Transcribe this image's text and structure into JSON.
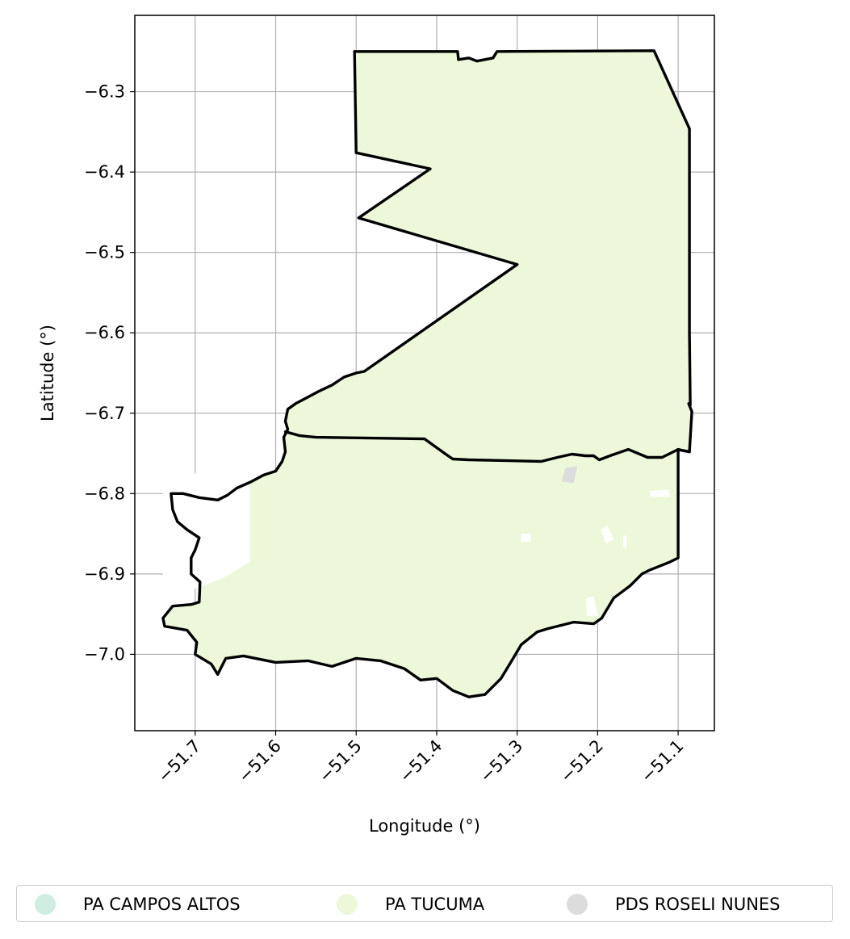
{
  "chart_data": {
    "type": "map",
    "xlabel": "Longitude (°)",
    "ylabel": "Latitude (°)",
    "xlim": [
      -51.775,
      -51.055
    ],
    "ylim": [
      -7.095,
      -6.205
    ],
    "x_ticks": [
      {
        "value": -51.7,
        "label": "−51.7"
      },
      {
        "value": -51.6,
        "label": "−51.6"
      },
      {
        "value": -51.5,
        "label": "−51.5"
      },
      {
        "value": -51.4,
        "label": "−51.4"
      },
      {
        "value": -51.3,
        "label": "−51.3"
      },
      {
        "value": -51.2,
        "label": "−51.2"
      },
      {
        "value": -51.1,
        "label": "−51.1"
      }
    ],
    "y_ticks": [
      {
        "value": -6.3,
        "label": "−6.3"
      },
      {
        "value": -6.4,
        "label": "−6.4"
      },
      {
        "value": -6.5,
        "label": "−6.5"
      },
      {
        "value": -6.6,
        "label": "−6.6"
      },
      {
        "value": -6.7,
        "label": "−6.7"
      },
      {
        "value": -6.8,
        "label": "−6.8"
      },
      {
        "value": -6.9,
        "label": "−6.9"
      },
      {
        "value": -7.0,
        "label": "−7.0"
      }
    ],
    "grid": true,
    "legend_position": "bottom",
    "regions": [
      {
        "name": "PA TUCUMA",
        "fill": "#edf8db",
        "outline": [
          [
            -51.502,
            -6.25
          ],
          [
            -51.374,
            -6.25
          ],
          [
            -51.373,
            -6.26
          ],
          [
            -51.36,
            -6.258
          ],
          [
            -51.35,
            -6.262
          ],
          [
            -51.33,
            -6.258
          ],
          [
            -51.325,
            -6.25
          ],
          [
            -51.13,
            -6.249
          ],
          [
            -51.086,
            -6.346
          ],
          [
            -51.086,
            -6.6
          ],
          [
            -51.085,
            -6.69
          ],
          [
            -51.086,
            -6.748
          ],
          [
            -51.097,
            -6.746
          ],
          [
            -51.1,
            -6.745
          ],
          [
            -51.1,
            -6.88
          ],
          [
            -51.11,
            -6.885
          ],
          [
            -51.135,
            -6.895
          ],
          [
            -51.145,
            -6.9
          ],
          [
            -51.16,
            -6.915
          ],
          [
            -51.18,
            -6.93
          ],
          [
            -51.195,
            -6.955
          ],
          [
            -51.205,
            -6.962
          ],
          [
            -51.23,
            -6.96
          ],
          [
            -51.262,
            -6.968
          ],
          [
            -51.275,
            -6.972
          ],
          [
            -51.295,
            -6.988
          ],
          [
            -51.305,
            -7.005
          ],
          [
            -51.32,
            -7.03
          ],
          [
            -51.34,
            -7.05
          ],
          [
            -51.36,
            -7.053
          ],
          [
            -51.38,
            -7.045
          ],
          [
            -51.4,
            -7.03
          ],
          [
            -51.42,
            -7.032
          ],
          [
            -51.44,
            -7.018
          ],
          [
            -51.47,
            -7.008
          ],
          [
            -51.5,
            -7.005
          ],
          [
            -51.53,
            -7.015
          ],
          [
            -51.56,
            -7.008
          ],
          [
            -51.6,
            -7.01
          ],
          [
            -51.64,
            -7.002
          ],
          [
            -51.662,
            -7.005
          ],
          [
            -51.672,
            -7.025
          ],
          [
            -51.68,
            -7.012
          ],
          [
            -51.7,
            -7.0
          ],
          [
            -51.698,
            -6.985
          ],
          [
            -51.71,
            -6.97
          ],
          [
            -51.738,
            -6.965
          ],
          [
            -51.74,
            -6.955
          ],
          [
            -51.728,
            -6.94
          ],
          [
            -51.705,
            -6.938
          ],
          [
            -51.695,
            -6.935
          ],
          [
            -51.694,
            -6.91
          ],
          [
            -51.705,
            -6.9
          ],
          [
            -51.705,
            -6.88
          ],
          [
            -51.7,
            -6.87
          ],
          [
            -51.695,
            -6.855
          ],
          [
            -51.71,
            -6.845
          ],
          [
            -51.722,
            -6.835
          ],
          [
            -51.728,
            -6.82
          ],
          [
            -51.73,
            -6.8
          ],
          [
            -51.715,
            -6.8
          ],
          [
            -51.695,
            -6.805
          ],
          [
            -51.672,
            -6.808
          ],
          [
            -51.66,
            -6.802
          ],
          [
            -51.648,
            -6.793
          ],
          [
            -51.63,
            -6.785
          ],
          [
            -51.615,
            -6.777
          ],
          [
            -51.6,
            -6.772
          ],
          [
            -51.592,
            -6.76
          ],
          [
            -51.588,
            -6.748
          ],
          [
            -51.59,
            -6.73
          ],
          [
            -51.585,
            -6.72
          ],
          [
            -51.588,
            -6.71
          ],
          [
            -51.585,
            -6.695
          ],
          [
            -51.575,
            -6.688
          ],
          [
            -51.56,
            -6.68
          ],
          [
            -51.545,
            -6.672
          ],
          [
            -51.53,
            -6.665
          ],
          [
            -51.515,
            -6.655
          ],
          [
            -51.5,
            -6.65
          ],
          [
            -51.49,
            -6.648
          ],
          [
            -51.3,
            -6.515
          ],
          [
            -51.497,
            -6.457
          ],
          [
            -51.408,
            -6.396
          ],
          [
            -51.5,
            -6.376
          ],
          [
            -51.502,
            -6.25
          ]
        ]
      },
      {
        "name": "PDS ROSELI NUNES",
        "fill": "#dcdcdc",
        "outline": [
          [
            -51.225,
            -6.766
          ],
          [
            -51.24,
            -6.768
          ],
          [
            -51.245,
            -6.785
          ],
          [
            -51.23,
            -6.787
          ]
        ]
      }
    ],
    "holes": [
      [
        [
          -51.632,
          -6.775
        ],
        [
          -51.632,
          -6.885
        ],
        [
          -51.665,
          -6.905
        ],
        [
          -51.705,
          -6.92
        ],
        [
          -51.74,
          -6.905
        ],
        [
          -51.74,
          -6.78
        ],
        [
          -51.66,
          -6.77
        ]
      ],
      [
        [
          -51.196,
          -6.845
        ],
        [
          -51.188,
          -6.84
        ],
        [
          -51.18,
          -6.857
        ],
        [
          -51.19,
          -6.862
        ]
      ],
      [
        [
          -51.168,
          -6.852
        ],
        [
          -51.164,
          -6.852
        ],
        [
          -51.164,
          -6.867
        ],
        [
          -51.168,
          -6.867
        ]
      ],
      [
        [
          -51.295,
          -6.85
        ],
        [
          -51.283,
          -6.85
        ],
        [
          -51.283,
          -6.86
        ],
        [
          -51.295,
          -6.86
        ]
      ],
      [
        [
          -51.214,
          -6.93
        ],
        [
          -51.205,
          -6.928
        ],
        [
          -51.2,
          -6.952
        ],
        [
          -51.214,
          -6.952
        ]
      ],
      [
        [
          -51.135,
          -6.797
        ],
        [
          -51.112,
          -6.795
        ],
        [
          -51.11,
          -6.804
        ],
        [
          -51.135,
          -6.804
        ]
      ]
    ],
    "boundary_lines": [
      {
        "name": "north-outline",
        "points": [
          [
            -51.502,
            -6.25
          ],
          [
            -51.374,
            -6.25
          ],
          [
            -51.373,
            -6.26
          ],
          [
            -51.36,
            -6.258
          ],
          [
            -51.35,
            -6.262
          ],
          [
            -51.33,
            -6.258
          ],
          [
            -51.325,
            -6.25
          ],
          [
            -51.13,
            -6.249
          ],
          [
            -51.086,
            -6.346
          ],
          [
            -51.086,
            -6.6
          ],
          [
            -51.085,
            -6.69
          ],
          [
            -51.087,
            -6.688
          ],
          [
            -51.083,
            -6.698
          ],
          [
            -51.086,
            -6.748
          ],
          [
            -51.097,
            -6.746
          ]
        ]
      },
      {
        "name": "west-zigzag-outline",
        "points": [
          [
            -51.502,
            -6.25
          ],
          [
            -51.5,
            -6.376
          ],
          [
            -51.408,
            -6.396
          ],
          [
            -51.497,
            -6.457
          ],
          [
            -51.3,
            -6.515
          ],
          [
            -51.49,
            -6.648
          ],
          [
            -51.5,
            -6.65
          ],
          [
            -51.515,
            -6.655
          ],
          [
            -51.53,
            -6.665
          ],
          [
            -51.545,
            -6.672
          ],
          [
            -51.56,
            -6.68
          ],
          [
            -51.575,
            -6.688
          ],
          [
            -51.585,
            -6.695
          ],
          [
            -51.588,
            -6.71
          ],
          [
            -51.585,
            -6.72
          ],
          [
            -51.59,
            -6.73
          ],
          [
            -51.588,
            -6.748
          ],
          [
            -51.592,
            -6.76
          ],
          [
            -51.6,
            -6.772
          ],
          [
            -51.615,
            -6.777
          ],
          [
            -51.63,
            -6.785
          ],
          [
            -51.648,
            -6.793
          ],
          [
            -51.66,
            -6.802
          ],
          [
            -51.672,
            -6.808
          ],
          [
            -51.695,
            -6.805
          ],
          [
            -51.715,
            -6.8
          ],
          [
            -51.73,
            -6.8
          ],
          [
            -51.728,
            -6.82
          ],
          [
            -51.722,
            -6.835
          ],
          [
            -51.71,
            -6.845
          ],
          [
            -51.695,
            -6.855
          ],
          [
            -51.7,
            -6.87
          ],
          [
            -51.705,
            -6.88
          ],
          [
            -51.705,
            -6.9
          ],
          [
            -51.694,
            -6.91
          ],
          [
            -51.695,
            -6.935
          ],
          [
            -51.705,
            -6.938
          ],
          [
            -51.728,
            -6.94
          ],
          [
            -51.74,
            -6.955
          ],
          [
            -51.738,
            -6.965
          ],
          [
            -51.71,
            -6.97
          ],
          [
            -51.698,
            -6.985
          ],
          [
            -51.7,
            -7.0
          ],
          [
            -51.68,
            -7.012
          ],
          [
            -51.672,
            -7.025
          ],
          [
            -51.662,
            -7.005
          ],
          [
            -51.64,
            -7.002
          ],
          [
            -51.6,
            -7.01
          ],
          [
            -51.56,
            -7.008
          ],
          [
            -51.53,
            -7.015
          ],
          [
            -51.5,
            -7.005
          ],
          [
            -51.47,
            -7.008
          ],
          [
            -51.44,
            -7.018
          ],
          [
            -51.42,
            -7.032
          ],
          [
            -51.4,
            -7.03
          ],
          [
            -51.38,
            -7.045
          ],
          [
            -51.36,
            -7.053
          ],
          [
            -51.34,
            -7.05
          ],
          [
            -51.32,
            -7.03
          ],
          [
            -51.305,
            -7.005
          ],
          [
            -51.295,
            -6.988
          ],
          [
            -51.275,
            -6.972
          ],
          [
            -51.262,
            -6.968
          ],
          [
            -51.23,
            -6.96
          ],
          [
            -51.205,
            -6.962
          ],
          [
            -51.195,
            -6.955
          ],
          [
            -51.18,
            -6.93
          ],
          [
            -51.16,
            -6.915
          ],
          [
            -51.145,
            -6.9
          ],
          [
            -51.135,
            -6.895
          ],
          [
            -51.11,
            -6.885
          ],
          [
            -51.1,
            -6.88
          ],
          [
            -51.1,
            -6.745
          ]
        ]
      },
      {
        "name": "middle-divider",
        "points": [
          [
            -51.588,
            -6.723
          ],
          [
            -51.57,
            -6.728
          ],
          [
            -51.55,
            -6.73
          ],
          [
            -51.415,
            -6.732
          ],
          [
            -51.39,
            -6.75
          ],
          [
            -51.38,
            -6.757
          ],
          [
            -51.36,
            -6.758
          ],
          [
            -51.27,
            -6.76
          ],
          [
            -51.25,
            -6.755
          ],
          [
            -51.232,
            -6.751
          ],
          [
            -51.215,
            -6.753
          ],
          [
            -51.205,
            -6.753
          ],
          [
            -51.198,
            -6.758
          ],
          [
            -51.182,
            -6.752
          ],
          [
            -51.162,
            -6.745
          ],
          [
            -51.138,
            -6.755
          ],
          [
            -51.12,
            -6.755
          ],
          [
            -51.1,
            -6.745
          ],
          [
            -51.086,
            -6.748
          ]
        ]
      }
    ]
  },
  "legend": {
    "items": [
      {
        "label": "PA CAMPOS ALTOS",
        "color": "#d0ede1"
      },
      {
        "label": "PA TUCUMA",
        "color": "#edf8db"
      },
      {
        "label": "PDS ROSELI NUNES",
        "color": "#dcdcdc"
      }
    ]
  }
}
